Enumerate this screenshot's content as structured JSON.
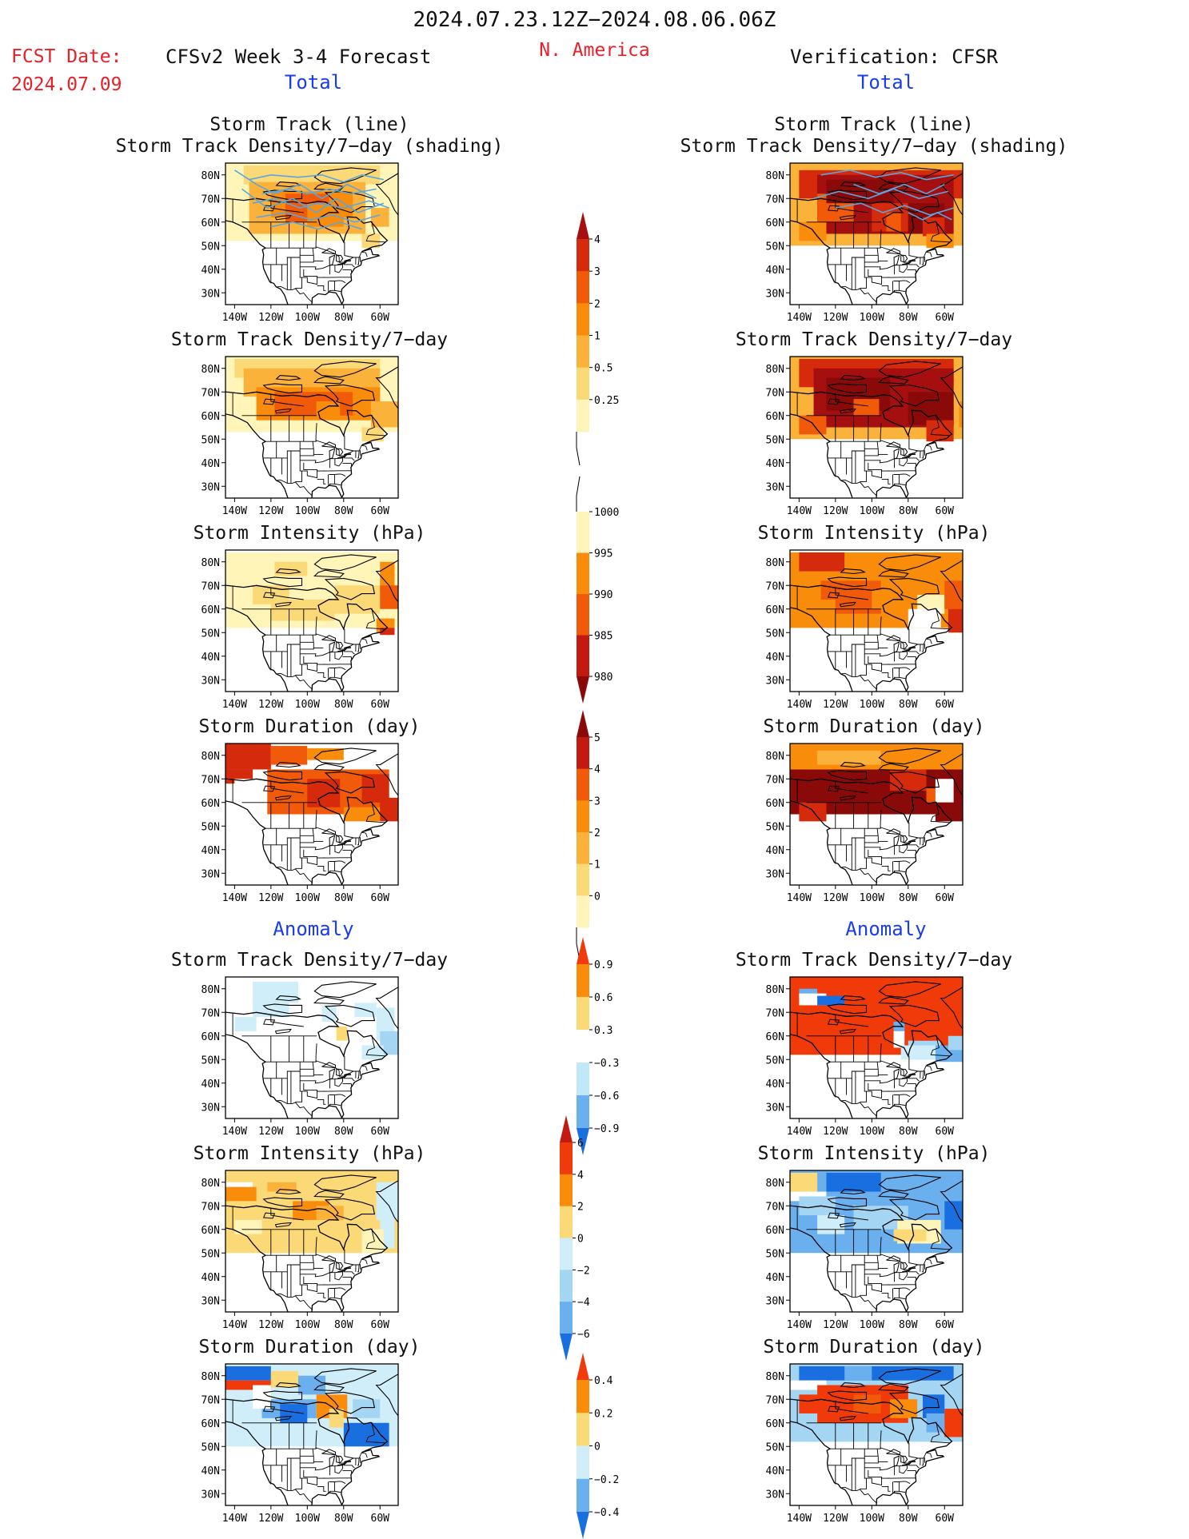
{
  "header": {
    "date_range": "2024.07.23.12Z−2024.08.06.06Z",
    "region": "N. America",
    "fcst_label": "FCST Date:",
    "fcst_date": "2024.07.09",
    "model_title": "CFSv2 Week 3-4 Forecast",
    "verification_title": "Verification: CFSR"
  },
  "section_labels": {
    "total": "Total",
    "anomaly": "Anomaly"
  },
  "axes": {
    "lat_ticks": [
      "80N",
      "70N",
      "60N",
      "50N",
      "40N",
      "30N"
    ],
    "lon_ticks": [
      "140W",
      "120W",
      "100W",
      "80W",
      "60W"
    ]
  },
  "panels": [
    {
      "title": [
        "Storm Track (line)",
        "Storm Track Density/7−day (shading)"
      ]
    },
    {
      "title": [
        "Storm Track Density/7−day"
      ]
    },
    {
      "title": [
        "Storm Intensity (hPa)"
      ]
    },
    {
      "title": [
        "Storm Duration (day)"
      ]
    },
    {
      "title": [
        "Storm Track Density/7−day"
      ]
    },
    {
      "title": [
        "Storm Intensity (hPa)"
      ]
    },
    {
      "title": [
        "Storm Duration (day)"
      ]
    }
  ],
  "colorbars": [
    {
      "name": "density",
      "labels": [
        "4",
        "3",
        "2",
        "1",
        "0.5",
        "0.25"
      ],
      "colors": [
        "#a50f0f",
        "#d62a0c",
        "#f05a08",
        "#f98c0a",
        "#fbb23a",
        "#fcd977",
        "#fff5b8"
      ]
    },
    {
      "name": "intensity",
      "labels": [
        "1000",
        "995",
        "990",
        "985",
        "980"
      ],
      "colors": [
        "#fff5b8",
        "#f98c0a",
        "#f05a08",
        "#c21a10",
        "#8a0a0a"
      ]
    },
    {
      "name": "duration",
      "labels": [
        "5",
        "4",
        "3",
        "2",
        "1",
        "0"
      ],
      "colors": [
        "#8a0a0a",
        "#c21a10",
        "#f05a08",
        "#f98c0a",
        "#fbb23a",
        "#fcd977",
        "#fff5b8"
      ]
    },
    {
      "name": "density-anom",
      "labels": [
        "0.9",
        "0.6",
        "0.3",
        "−0.3",
        "−0.6",
        "−0.9"
      ],
      "colors": [
        "#f03a0a",
        "#f98c0a",
        "#fcd977",
        "#ffffff",
        "#bfe8f8",
        "#6bb0ee",
        "#1a6fe0"
      ]
    },
    {
      "name": "intensity-anom",
      "labels": [
        "6",
        "4",
        "2",
        "0",
        "−2",
        "−4",
        "−6"
      ],
      "colors": [
        "#c21a10",
        "#f03a0a",
        "#f98c0a",
        "#fcd977",
        "#cfeefa",
        "#a4d6f4",
        "#6bb0ee",
        "#1a6fe0"
      ]
    },
    {
      "name": "duration-anom",
      "labels": [
        "0.4",
        "0.2",
        "0",
        "−0.2",
        "−0.4"
      ],
      "colors": [
        "#f03a0a",
        "#f98c0a",
        "#fcd977",
        "#cfeefa",
        "#6bb0ee",
        "#1a6fe0"
      ]
    }
  ],
  "colors": {
    "red_text": "#e8202a",
    "blue_text": "#1a3cf0",
    "track_line": "#5aa6e0"
  }
}
